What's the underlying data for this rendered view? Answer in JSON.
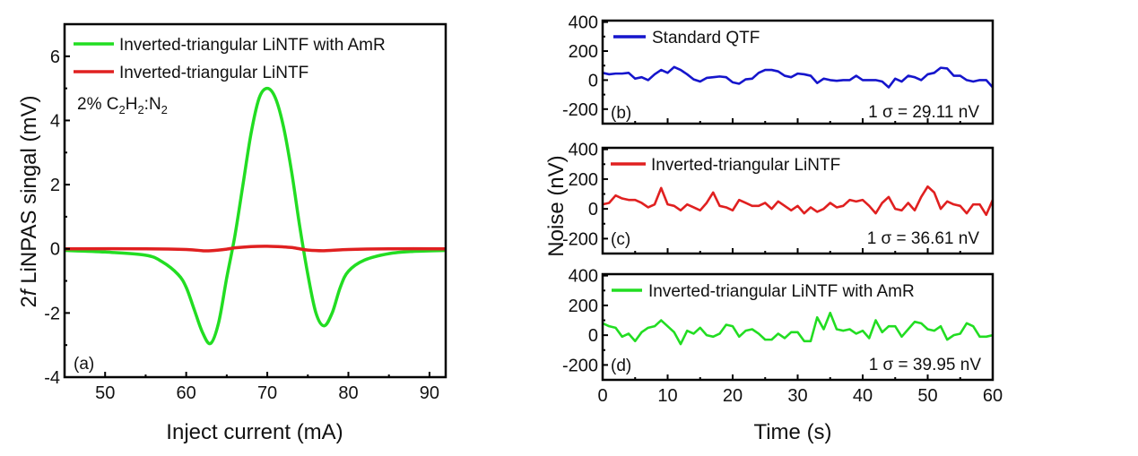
{
  "chart_data": [
    {
      "panel": "(a)",
      "type": "line",
      "xlabel": "Inject current (mA)",
      "ylabel_prefix": "2",
      "ylabel_italic": "f",
      "ylabel_rest": " LiNPAS singal (mV)",
      "xlim": [
        45,
        92
      ],
      "ylim": [
        -4,
        7
      ],
      "xticks": [
        50,
        60,
        70,
        80,
        90
      ],
      "yticks": [
        -4,
        -2,
        0,
        2,
        4,
        6
      ],
      "annotation": {
        "a": "2% C",
        "s1": "2",
        "b": "H",
        "s2": "2",
        "c": ":N",
        "s3": "2"
      },
      "legend_position": "top-left",
      "series": [
        {
          "name": "Inverted-triangular LiNTF with AmR",
          "color": "#22dd22",
          "x": [
            45,
            50,
            55,
            57,
            59,
            60,
            61,
            62,
            63,
            64,
            65,
            66,
            67,
            68,
            69,
            70,
            71,
            72,
            73,
            74,
            75,
            76,
            77,
            78,
            79,
            80,
            82,
            85,
            88,
            92
          ],
          "y": [
            -0.05,
            -0.1,
            -0.2,
            -0.4,
            -0.8,
            -1.2,
            -1.9,
            -2.6,
            -2.95,
            -2.3,
            -0.9,
            0.4,
            2.0,
            3.6,
            4.7,
            5.0,
            4.7,
            3.8,
            2.4,
            0.7,
            -0.8,
            -2.0,
            -2.4,
            -2.0,
            -1.2,
            -0.7,
            -0.35,
            -0.15,
            -0.08,
            -0.05
          ]
        },
        {
          "name": "Inverted-triangular LiNTF",
          "color": "#e02020",
          "x": [
            45,
            55,
            60,
            62,
            63,
            65,
            66,
            68,
            70,
            72,
            73,
            74,
            75,
            77,
            80,
            85,
            92
          ],
          "y": [
            0,
            0,
            -0.02,
            -0.06,
            -0.06,
            -0.01,
            0.03,
            0.07,
            0.08,
            0.06,
            0.04,
            0,
            -0.04,
            -0.06,
            -0.02,
            0,
            0
          ]
        }
      ]
    },
    {
      "panel": "(b)",
      "type": "line",
      "xlim": [
        0,
        60
      ],
      "ylim": [
        -300,
        410
      ],
      "yticks": [
        -200,
        0,
        200,
        400
      ],
      "sigma_label": "1 σ = 29.11 nV",
      "series": [
        {
          "name": "Standard QTF",
          "color": "#1515cc",
          "y": [
            50,
            40,
            45,
            45,
            50,
            10,
            20,
            0,
            40,
            70,
            50,
            90,
            70,
            40,
            5,
            -10,
            15,
            20,
            25,
            20,
            -15,
            -25,
            5,
            10,
            50,
            70,
            70,
            60,
            30,
            20,
            45,
            40,
            30,
            -20,
            10,
            0,
            -5,
            0,
            0,
            30,
            0,
            0,
            0,
            -10,
            -50,
            10,
            -10,
            30,
            20,
            0,
            40,
            50,
            85,
            80,
            30,
            30,
            0,
            -10,
            0,
            0,
            -50
          ]
        }
      ]
    },
    {
      "panel": "(c)",
      "type": "line",
      "xlim": [
        0,
        60
      ],
      "ylim": [
        -300,
        410
      ],
      "yticks": [
        -200,
        0,
        200,
        400
      ],
      "sigma_label": "1 σ = 36.61 nV",
      "series": [
        {
          "name": "Inverted-triangular LiNTF",
          "color": "#e02020",
          "y": [
            30,
            40,
            90,
            70,
            60,
            60,
            40,
            10,
            30,
            140,
            30,
            20,
            -10,
            30,
            10,
            -10,
            40,
            110,
            20,
            10,
            -10,
            60,
            40,
            20,
            20,
            40,
            0,
            50,
            20,
            -10,
            20,
            -30,
            10,
            -20,
            0,
            40,
            10,
            20,
            60,
            50,
            60,
            20,
            -30,
            40,
            80,
            0,
            -10,
            40,
            -10,
            80,
            150,
            110,
            0,
            50,
            30,
            20,
            -30,
            30,
            30,
            -40,
            60
          ]
        }
      ]
    },
    {
      "panel": "(d)",
      "type": "line",
      "xlim": [
        0,
        60
      ],
      "ylim": [
        -300,
        410
      ],
      "xticks": [
        0,
        10,
        20,
        30,
        40,
        50,
        60
      ],
      "xlabel": "Time (s)",
      "yticks": [
        -200,
        0,
        200,
        400
      ],
      "sigma_label": "1 σ  = 39.95 nV",
      "series": [
        {
          "name": "Inverted-triangular LiNTF with AmR",
          "color": "#22dd22",
          "y": [
            80,
            60,
            50,
            -10,
            10,
            -40,
            20,
            50,
            60,
            100,
            60,
            20,
            -60,
            30,
            10,
            50,
            0,
            -10,
            10,
            70,
            60,
            -10,
            30,
            40,
            10,
            -30,
            -30,
            10,
            -20,
            20,
            20,
            -40,
            -40,
            120,
            40,
            150,
            40,
            30,
            40,
            10,
            30,
            -20,
            100,
            20,
            60,
            60,
            -10,
            40,
            90,
            80,
            40,
            30,
            60,
            -30,
            0,
            10,
            80,
            60,
            -10,
            -10,
            0
          ]
        }
      ]
    }
  ],
  "shared_ylabel": "Noise (nV)"
}
